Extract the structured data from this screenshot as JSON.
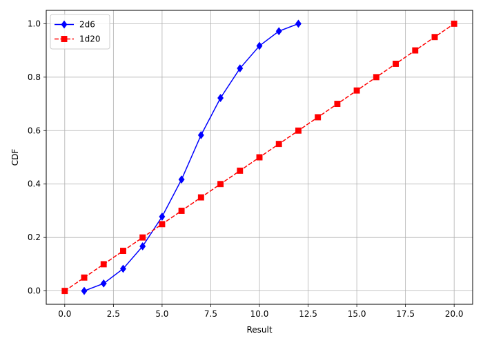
{
  "chart_data": {
    "type": "line",
    "xlabel": "Result",
    "ylabel": "CDF",
    "xlim": [
      -0.95,
      20.95
    ],
    "ylim": [
      -0.05,
      1.05
    ],
    "x_ticks": [
      0.0,
      2.5,
      5.0,
      7.5,
      10.0,
      12.5,
      15.0,
      17.5,
      20.0
    ],
    "x_tick_labels": [
      "0.0",
      "2.5",
      "5.0",
      "7.5",
      "10.0",
      "12.5",
      "15.0",
      "17.5",
      "20.0"
    ],
    "y_ticks": [
      0.0,
      0.2,
      0.4,
      0.6,
      0.8,
      1.0
    ],
    "y_tick_labels": [
      "0.0",
      "0.2",
      "0.4",
      "0.6",
      "0.8",
      "1.0"
    ],
    "grid": true,
    "legend_position": "top-left",
    "series": [
      {
        "name": "2d6",
        "color": "#0000ff",
        "marker": "diamond",
        "line_style": "solid",
        "x": [
          1,
          2,
          3,
          4,
          5,
          6,
          7,
          8,
          9,
          10,
          11,
          12
        ],
        "y": [
          0.0,
          0.028,
          0.083,
          0.167,
          0.278,
          0.417,
          0.583,
          0.722,
          0.833,
          0.917,
          0.972,
          1.0
        ]
      },
      {
        "name": "1d20",
        "color": "#ff0000",
        "marker": "square",
        "line_style": "dashed",
        "x": [
          0,
          1,
          2,
          3,
          4,
          5,
          6,
          7,
          8,
          9,
          10,
          11,
          12,
          13,
          14,
          15,
          16,
          17,
          18,
          19,
          20
        ],
        "y": [
          0.0,
          0.05,
          0.1,
          0.15,
          0.2,
          0.25,
          0.3,
          0.35,
          0.4,
          0.45,
          0.5,
          0.55,
          0.6,
          0.65,
          0.7,
          0.75,
          0.8,
          0.85,
          0.9,
          0.95,
          1.0
        ]
      }
    ]
  }
}
